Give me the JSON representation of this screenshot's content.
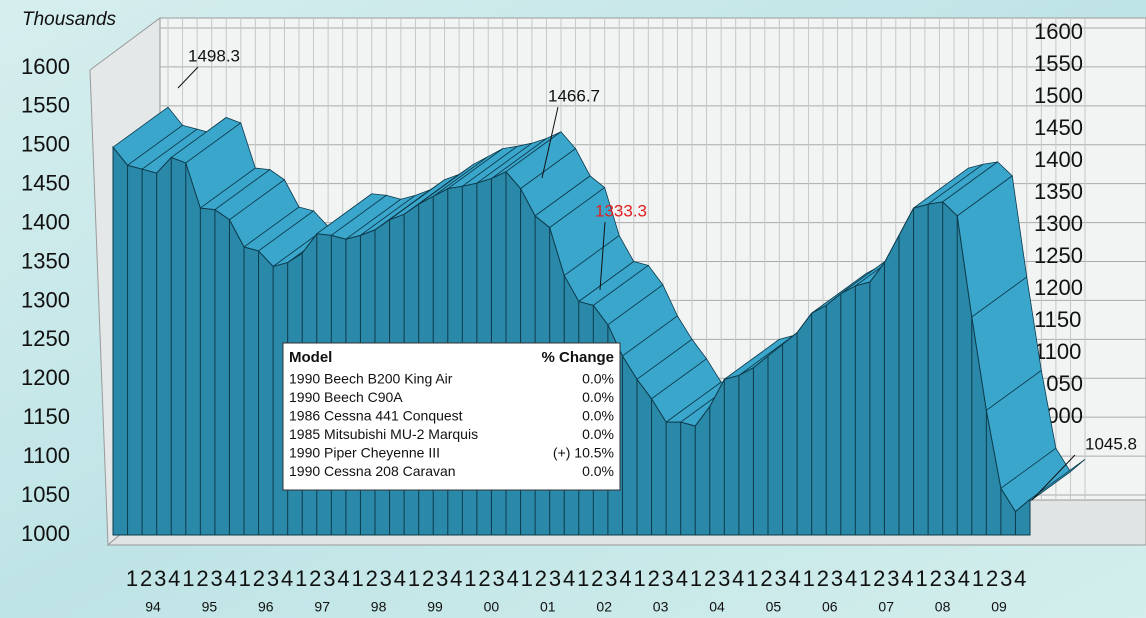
{
  "chart_data": {
    "type": "area3d",
    "axis_label": "Thousands",
    "categories": [
      "1",
      "2",
      "3",
      "4",
      "1",
      "2",
      "3",
      "4",
      "1",
      "2",
      "3",
      "4",
      "1",
      "2",
      "3",
      "4",
      "1",
      "2",
      "3",
      "4",
      "1",
      "2",
      "3",
      "4",
      "1",
      "2",
      "3",
      "4",
      "1",
      "2",
      "3",
      "4",
      "1",
      "2",
      "3",
      "4",
      "1",
      "2",
      "3",
      "4",
      "1",
      "2",
      "3",
      "4",
      "1",
      "2",
      "3",
      "4",
      "1",
      "2",
      "3",
      "4",
      "1",
      "2",
      "3",
      "4",
      "1",
      "2",
      "3",
      "4",
      "1",
      "2",
      "3",
      "4"
    ],
    "years": [
      "94",
      "95",
      "96",
      "97",
      "98",
      "99",
      "00",
      "01",
      "02",
      "03",
      "04",
      "05",
      "06",
      "07",
      "08",
      "09"
    ],
    "values": [
      1498.3,
      1475,
      1470,
      1465,
      1485,
      1478,
      1420,
      1418,
      1405,
      1370,
      1365,
      1345,
      1350,
      1362,
      1387,
      1385,
      1380,
      1385,
      1392,
      1405,
      1412,
      1425,
      1435,
      1445,
      1448,
      1452,
      1458,
      1466.7,
      1445,
      1410,
      1395,
      1333.3,
      1300,
      1295,
      1270,
      1230,
      1200,
      1175,
      1145,
      1145,
      1140,
      1165,
      1200,
      1205,
      1215,
      1230,
      1245,
      1260,
      1285,
      1295,
      1310,
      1320,
      1325,
      1350,
      1385,
      1420,
      1425,
      1428,
      1410,
      1280,
      1160,
      1060,
      1030,
      1045.8
    ],
    "color": "#2a88a8",
    "ylim": [
      1000,
      1600
    ],
    "yticks": [
      1000,
      1050,
      1100,
      1150,
      1200,
      1250,
      1300,
      1350,
      1400,
      1450,
      1500,
      1550,
      1600
    ],
    "y2lim": [
      1000,
      1600
    ],
    "y2ticks": [
      1000,
      1050,
      1100,
      1150,
      1200,
      1250,
      1300,
      1350,
      1400,
      1450,
      1500,
      1550,
      1600
    ],
    "grid": true,
    "annotations": [
      {
        "text": "1498.3",
        "index": 0
      },
      {
        "text": "1466.7",
        "index": 27
      },
      {
        "text": "1333.3",
        "index": 31,
        "color": "#e02020"
      },
      {
        "text": "1045.8",
        "index": 63
      }
    ],
    "table": {
      "header": [
        "Model",
        "% Change"
      ],
      "rows": [
        [
          "1990 Beech B200 King Air",
          "0.0%"
        ],
        [
          "1990 Beech C90A",
          "0.0%"
        ],
        [
          "1986 Cessna 441 Conquest",
          "0.0%"
        ],
        [
          "1985 Mitsubishi MU-2 Marquis",
          "0.0%"
        ],
        [
          "1990 Piper Cheyenne III",
          "(+) 10.5%"
        ],
        [
          "1990 Cessna 208 Caravan",
          "0.0%"
        ]
      ]
    }
  }
}
